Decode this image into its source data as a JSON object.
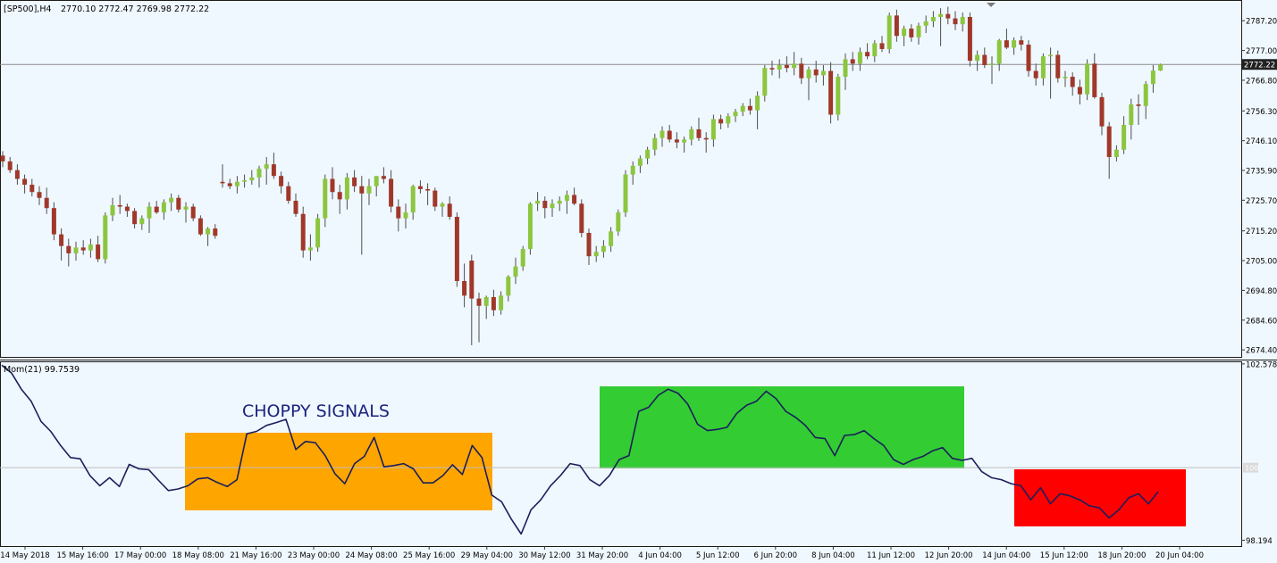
{
  "header": {
    "symbol": "[SP500],H4",
    "ohlc": "2770.10 2772.47 2769.98 2772.22"
  },
  "colors": {
    "background": "#f0f8ff",
    "bull": "#8cc63f",
    "bear": "#a0382a",
    "wick": "#4d4d4d",
    "momentum_line": "#1a1f5c",
    "zone_orange": "#ffa500",
    "zone_green": "#33cc33",
    "zone_red": "#ff0000",
    "price_line": "#8a8a8a",
    "label_blue": "#1a237e"
  },
  "annotation": {
    "text": "CHOPPY SIGNALS"
  },
  "chart_data": [
    {
      "type": "candlestick",
      "title": "[SP500],H4",
      "ylim": [
        2672.0,
        2794.0
      ],
      "y_ticks": [
        "2787.20",
        "2777.00",
        "2766.80",
        "2756.30",
        "2746.10",
        "2735.90",
        "2725.70",
        "2715.20",
        "2705.00",
        "2694.80",
        "2684.60",
        "2674.40"
      ],
      "y_tick_values": [
        2787.2,
        2777.0,
        2766.8,
        2756.3,
        2746.1,
        2735.9,
        2725.7,
        2715.2,
        2705.0,
        2694.8,
        2684.6,
        2674.4
      ],
      "current_price": 2772.22,
      "current_price_label": "2772.22",
      "candles": [
        [
          2741.0,
          2742.5,
          2737.0,
          2739.0
        ],
        [
          2739.0,
          2740.5,
          2735.0,
          2736.0
        ],
        [
          2736.0,
          2738.0,
          2731.0,
          2733.0
        ],
        [
          2733.0,
          2734.5,
          2728.0,
          2731.0
        ],
        [
          2731.0,
          2733.0,
          2727.0,
          2728.5
        ],
        [
          2728.5,
          2730.5,
          2724.0,
          2726.5
        ],
        [
          2726.5,
          2730.0,
          2721.0,
          2723.0
        ],
        [
          2723.0,
          2725.0,
          2712.0,
          2714.0
        ],
        [
          2714.0,
          2716.0,
          2705.0,
          2710.0
        ],
        [
          2710.0,
          2712.5,
          2703.0,
          2707.5
        ],
        [
          2707.5,
          2711.5,
          2705.0,
          2709.5
        ],
        [
          2709.5,
          2712.0,
          2707.0,
          2708.5
        ],
        [
          2708.5,
          2712.5,
          2706.0,
          2710.5
        ],
        [
          2710.5,
          2713.5,
          2704.5,
          2705.5
        ],
        [
          2705.5,
          2721.5,
          2704.0,
          2720.5
        ],
        [
          2720.5,
          2726.5,
          2718.5,
          2724.0
        ],
        [
          2724.0,
          2727.5,
          2721.0,
          2723.5
        ],
        [
          2723.5,
          2724.5,
          2720.0,
          2722.0
        ],
        [
          2722.0,
          2723.0,
          2716.0,
          2717.5
        ],
        [
          2717.5,
          2720.5,
          2715.5,
          2719.5
        ],
        [
          2719.5,
          2725.0,
          2714.5,
          2723.5
        ],
        [
          2723.5,
          2725.5,
          2721.0,
          2721.5
        ],
        [
          2721.5,
          2726.0,
          2719.0,
          2725.0
        ],
        [
          2725.0,
          2728.0,
          2722.0,
          2726.5
        ],
        [
          2726.5,
          2727.5,
          2721.5,
          2722.5
        ],
        [
          2722.5,
          2725.0,
          2718.0,
          2723.5
        ],
        [
          2723.5,
          2724.5,
          2718.5,
          2719.5
        ],
        [
          2719.5,
          2720.5,
          2713.5,
          2714.0
        ],
        [
          2714.0,
          2716.5,
          2710.0,
          2716.0
        ],
        [
          2716.0,
          2717.5,
          2712.5,
          2713.5
        ],
        [
          2732.0,
          2738.0,
          2730.0,
          2731.5
        ],
        [
          2731.5,
          2733.0,
          2729.5,
          2730.5
        ],
        [
          2730.5,
          2734.0,
          2728.0,
          2732.0
        ],
        [
          2732.0,
          2734.5,
          2730.0,
          2732.5
        ],
        [
          2732.5,
          2736.0,
          2731.0,
          2733.5
        ],
        [
          2733.5,
          2737.5,
          2730.0,
          2736.5
        ],
        [
          2736.5,
          2740.5,
          2731.0,
          2738.0
        ],
        [
          2738.0,
          2742.0,
          2733.0,
          2734.0
        ],
        [
          2734.0,
          2735.5,
          2728.0,
          2730.5
        ],
        [
          2730.5,
          2732.0,
          2724.5,
          2725.5
        ],
        [
          2725.5,
          2728.0,
          2720.0,
          2721.0
        ],
        [
          2721.0,
          2723.5,
          2706.0,
          2708.5
        ],
        [
          2708.5,
          2714.0,
          2705.0,
          2709.5
        ],
        [
          2709.5,
          2721.0,
          2708.0,
          2719.5
        ],
        [
          2719.5,
          2734.5,
          2716.5,
          2733.0
        ],
        [
          2733.0,
          2737.0,
          2726.0,
          2728.5
        ],
        [
          2728.5,
          2731.0,
          2721.0,
          2726.0
        ],
        [
          2726.0,
          2735.0,
          2722.5,
          2733.5
        ],
        [
          2733.5,
          2736.0,
          2728.5,
          2730.5
        ],
        [
          2730.5,
          2734.0,
          2707.0,
          2728.0
        ],
        [
          2728.0,
          2733.0,
          2724.0,
          2730.5
        ],
        [
          2730.5,
          2733.5,
          2727.0,
          2734.0
        ],
        [
          2734.0,
          2737.0,
          2731.5,
          2733.0
        ],
        [
          2733.0,
          2736.0,
          2721.5,
          2723.5
        ],
        [
          2723.5,
          2726.0,
          2715.0,
          2719.5
        ],
        [
          2719.5,
          2724.5,
          2716.0,
          2721.5
        ],
        [
          2721.5,
          2731.0,
          2719.0,
          2730.5
        ],
        [
          2730.5,
          2732.5,
          2728.0,
          2729.5
        ],
        [
          2729.5,
          2731.5,
          2724.0,
          2729.0
        ],
        [
          2729.0,
          2730.0,
          2722.0,
          2723.5
        ],
        [
          2723.5,
          2725.0,
          2720.0,
          2724.5
        ],
        [
          2724.5,
          2727.0,
          2719.0,
          2720.0
        ],
        [
          2720.0,
          2721.5,
          2696.0,
          2698.0
        ],
        [
          2698.0,
          2704.0,
          2689.0,
          2693.0
        ],
        [
          2705.0,
          2707.0,
          2676.0,
          2692.0
        ],
        [
          2692.0,
          2694.0,
          2677.0,
          2689.5
        ],
        [
          2689.5,
          2693.0,
          2685.0,
          2692.5
        ],
        [
          2692.5,
          2695.0,
          2686.0,
          2688.0
        ],
        [
          2688.0,
          2694.5,
          2686.5,
          2693.0
        ],
        [
          2693.0,
          2700.0,
          2691.0,
          2699.5
        ],
        [
          2699.5,
          2706.0,
          2697.0,
          2703.0
        ],
        [
          2703.0,
          2710.0,
          2701.5,
          2709.0
        ],
        [
          2709.0,
          2725.0,
          2707.0,
          2724.5
        ],
        [
          2724.5,
          2728.5,
          2722.0,
          2725.5
        ],
        [
          2725.5,
          2727.0,
          2719.5,
          2723.0
        ],
        [
          2723.0,
          2726.0,
          2720.0,
          2724.5
        ],
        [
          2724.5,
          2727.0,
          2722.0,
          2725.5
        ],
        [
          2725.5,
          2729.0,
          2721.0,
          2727.5
        ],
        [
          2727.5,
          2730.0,
          2724.0,
          2724.5
        ],
        [
          2724.5,
          2726.0,
          2713.0,
          2714.5
        ],
        [
          2714.5,
          2716.0,
          2703.5,
          2706.5
        ],
        [
          2706.5,
          2710.0,
          2704.5,
          2708.0
        ],
        [
          2708.0,
          2712.0,
          2706.0,
          2710.0
        ],
        [
          2710.0,
          2716.5,
          2708.0,
          2715.0
        ],
        [
          2715.0,
          2722.5,
          2713.5,
          2721.5
        ],
        [
          2721.5,
          2736.0,
          2720.0,
          2734.5
        ],
        [
          2734.5,
          2739.0,
          2731.0,
          2737.5
        ],
        [
          2737.5,
          2741.0,
          2735.0,
          2740.0
        ],
        [
          2740.0,
          2744.0,
          2738.0,
          2743.0
        ],
        [
          2743.0,
          2748.5,
          2741.0,
          2747.0
        ],
        [
          2747.0,
          2751.0,
          2744.0,
          2749.5
        ],
        [
          2749.5,
          2751.5,
          2745.5,
          2746.5
        ],
        [
          2746.5,
          2749.0,
          2743.5,
          2745.5
        ],
        [
          2745.5,
          2747.5,
          2742.0,
          2746.5
        ],
        [
          2746.5,
          2751.0,
          2744.5,
          2750.0
        ],
        [
          2750.0,
          2754.0,
          2746.0,
          2747.0
        ],
        [
          2747.0,
          2749.0,
          2742.0,
          2746.5
        ],
        [
          2746.5,
          2755.0,
          2744.0,
          2753.5
        ],
        [
          2753.5,
          2755.0,
          2750.0,
          2752.0
        ],
        [
          2752.0,
          2755.5,
          2750.5,
          2754.5
        ],
        [
          2754.5,
          2757.0,
          2752.5,
          2756.0
        ],
        [
          2756.0,
          2759.0,
          2754.5,
          2758.0
        ],
        [
          2758.0,
          2760.5,
          2755.0,
          2756.5
        ],
        [
          2756.5,
          2763.0,
          2750.0,
          2761.5
        ],
        [
          2761.5,
          2772.0,
          2759.5,
          2771.0
        ],
        [
          2771.0,
          2773.5,
          2768.5,
          2770.5
        ],
        [
          2770.5,
          2774.0,
          2767.5,
          2772.0
        ],
        [
          2772.0,
          2775.0,
          2769.5,
          2771.0
        ],
        [
          2771.0,
          2776.5,
          2768.5,
          2772.5
        ],
        [
          2772.5,
          2774.5,
          2765.5,
          2767.5
        ],
        [
          2767.5,
          2771.5,
          2760.0,
          2770.5
        ],
        [
          2770.5,
          2773.5,
          2766.0,
          2768.5
        ],
        [
          2768.5,
          2772.0,
          2765.0,
          2770.0
        ],
        [
          2770.0,
          2773.0,
          2752.0,
          2755.0
        ],
        [
          2755.0,
          2769.0,
          2753.0,
          2768.0
        ],
        [
          2768.0,
          2776.0,
          2763.5,
          2774.0
        ],
        [
          2774.0,
          2776.5,
          2770.0,
          2772.5
        ],
        [
          2772.5,
          2778.0,
          2770.0,
          2776.5
        ],
        [
          2776.5,
          2779.5,
          2774.0,
          2775.0
        ],
        [
          2775.0,
          2780.5,
          2773.0,
          2779.5
        ],
        [
          2779.5,
          2782.0,
          2776.5,
          2777.5
        ],
        [
          2777.5,
          2790.0,
          2776.0,
          2789.0
        ],
        [
          2789.0,
          2791.0,
          2780.0,
          2782.0
        ],
        [
          2782.0,
          2785.5,
          2778.5,
          2784.5
        ],
        [
          2784.5,
          2786.0,
          2780.0,
          2781.5
        ],
        [
          2781.5,
          2786.5,
          2779.0,
          2785.5
        ],
        [
          2785.5,
          2789.0,
          2783.0,
          2787.0
        ],
        [
          2787.0,
          2790.5,
          2785.0,
          2788.5
        ],
        [
          2788.5,
          2791.5,
          2778.5,
          2789.5
        ],
        [
          2789.5,
          2792.0,
          2786.0,
          2788.0
        ],
        [
          2788.0,
          2790.5,
          2784.0,
          2786.0
        ],
        [
          2786.0,
          2790.0,
          2783.5,
          2788.5
        ],
        [
          2788.5,
          2790.0,
          2771.5,
          2773.5
        ],
        [
          2773.5,
          2777.0,
          2770.0,
          2775.5
        ],
        [
          2775.5,
          2778.0,
          2771.0,
          2772.0
        ],
        [
          2772.0,
          2775.0,
          2765.5,
          2772.5
        ],
        [
          2772.5,
          2781.0,
          2770.0,
          2780.5
        ],
        [
          2780.5,
          2784.5,
          2777.5,
          2778.0
        ],
        [
          2778.0,
          2781.5,
          2775.5,
          2780.5
        ],
        [
          2780.5,
          2782.0,
          2777.0,
          2779.0
        ],
        [
          2779.0,
          2780.5,
          2768.0,
          2770.0
        ],
        [
          2770.0,
          2772.5,
          2765.0,
          2767.5
        ],
        [
          2767.5,
          2776.0,
          2765.0,
          2775.0
        ],
        [
          2775.0,
          2778.0,
          2760.5,
          2775.5
        ],
        [
          2775.5,
          2777.0,
          2766.0,
          2767.5
        ],
        [
          2767.5,
          2770.0,
          2764.5,
          2768.0
        ],
        [
          2768.0,
          2769.5,
          2761.5,
          2764.5
        ],
        [
          2764.5,
          2767.0,
          2758.5,
          2762.0
        ],
        [
          2762.0,
          2774.0,
          2760.0,
          2772.5
        ],
        [
          2772.5,
          2776.0,
          2760.5,
          2761.0
        ],
        [
          2761.0,
          2762.5,
          2748.0,
          2751.0
        ],
        [
          2751.0,
          2752.5,
          2733.0,
          2740.5
        ],
        [
          2740.5,
          2744.5,
          2739.0,
          2743.0
        ],
        [
          2743.0,
          2754.5,
          2741.5,
          2751.5
        ],
        [
          2751.5,
          2760.5,
          2746.5,
          2758.5
        ],
        [
          2758.5,
          2762.0,
          2751.5,
          2758.0
        ],
        [
          2758.0,
          2766.5,
          2753.5,
          2765.5
        ],
        [
          2765.5,
          2772.0,
          2762.5,
          2770.1
        ],
        [
          2770.1,
          2772.47,
          2769.98,
          2772.22
        ]
      ]
    },
    {
      "type": "line",
      "title": "Mom(21) 99.7539",
      "ylim": [
        98.05,
        102.62
      ],
      "y_ticks": [
        "102.5783",
        "100",
        "98.194"
      ],
      "y_tick_values": [
        102.5783,
        100.0,
        98.194
      ],
      "reference_level": 100,
      "x_labels": [
        "14 May 2018",
        "15 May 16:00",
        "17 May 00:00",
        "18 May 08:00",
        "21 May 16:00",
        "23 May 00:00",
        "24 May 08:00",
        "25 May 16:00",
        "29 May 04:00",
        "30 May 12:00",
        "31 May 20:00",
        "4 Jun 04:00",
        "5 Jun 12:00",
        "6 Jun 20:00",
        "8 Jun 04:00",
        "11 Jun 12:00",
        "12 Jun 20:00",
        "14 Jun 04:00",
        "15 Jun 12:00",
        "18 Jun 20:00",
        "20 Jun 04:00"
      ],
      "series": [
        {
          "values": [
            102.55,
            102.35,
            101.95,
            101.65,
            101.15,
            100.9,
            100.55,
            100.25,
            100.22,
            99.8,
            99.55,
            99.75,
            99.53,
            100.08,
            99.97,
            99.95,
            99.68,
            99.43,
            99.47,
            99.55,
            99.72,
            99.75,
            99.63,
            99.53,
            99.7,
            100.84,
            100.9,
            101.05,
            101.12,
            101.2,
            100.45,
            100.65,
            100.62,
            100.3,
            99.85,
            99.6,
            100.1,
            100.28,
            100.75,
            100.02,
            100.05,
            100.1,
            99.97,
            99.62,
            99.62,
            99.8,
            100.07,
            99.83,
            100.55,
            100.25,
            99.32,
            99.15,
            98.72,
            98.35,
            98.95,
            99.2,
            99.55,
            99.8,
            100.1,
            100.05,
            99.7,
            99.55,
            99.8,
            100.2,
            100.3,
            101.4,
            101.5,
            101.8,
            101.95,
            101.85,
            101.58,
            101.08,
            100.92,
            100.95,
            101.0,
            101.35,
            101.55,
            101.65,
            101.9,
            101.72,
            101.4,
            101.25,
            101.05,
            100.75,
            100.72,
            100.3,
            100.8,
            100.82,
            100.92,
            100.72,
            100.55,
            100.2,
            100.08,
            100.2,
            100.28,
            100.42,
            100.5,
            100.23,
            100.18,
            100.23,
            99.9,
            99.75,
            99.7,
            99.6,
            99.55,
            99.2,
            99.5,
            99.1,
            99.35,
            99.3,
            99.2,
            99.05,
            99.0,
            98.75,
            98.95,
            99.25,
            99.35,
            99.1,
            99.4
          ]
        }
      ]
    }
  ]
}
